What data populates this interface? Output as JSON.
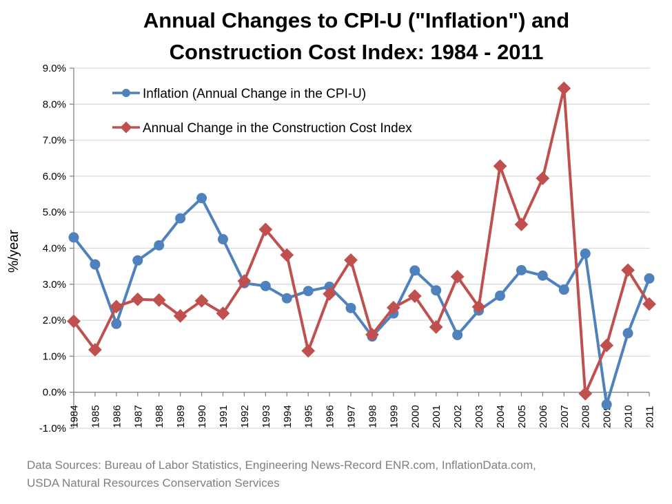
{
  "chart_data": {
    "type": "line",
    "title": "Annual Changes to CPI-U (\"Inflation\") and Construction Cost Index: 1984 - 2011",
    "title_lines": [
      "Annual Changes to CPI-U (\"Inflation\") and",
      "Construction Cost Index: 1984 - 2011"
    ],
    "xlabel": "",
    "ylabel": "%/year",
    "ylim": [
      -1.0,
      9.0
    ],
    "y_ticks": [
      -1.0,
      0.0,
      1.0,
      2.0,
      3.0,
      4.0,
      5.0,
      6.0,
      7.0,
      8.0,
      9.0
    ],
    "y_tick_labels": [
      "-1.0%",
      "0.0%",
      "1.0%",
      "2.0%",
      "3.0%",
      "4.0%",
      "5.0%",
      "6.0%",
      "7.0%",
      "8.0%",
      "9.0%"
    ],
    "grid": true,
    "legend_position": "top-left",
    "categories": [
      "1984",
      "1985",
      "1986",
      "1987",
      "1988",
      "1989",
      "1990",
      "1991",
      "1992",
      "1993",
      "1994",
      "1995",
      "1996",
      "1997",
      "1998",
      "1999",
      "2000",
      "2001",
      "2002",
      "2003",
      "2004",
      "2005",
      "2006",
      "2007",
      "2008",
      "2009",
      "2010",
      "2011"
    ],
    "series": [
      {
        "name": "Inflation (Annual Change in the CPI-U)",
        "color": "#4F81BD",
        "marker": "circle",
        "values": [
          4.3,
          3.55,
          1.9,
          3.66,
          4.08,
          4.83,
          5.39,
          4.25,
          3.03,
          2.95,
          2.61,
          2.81,
          2.93,
          2.34,
          1.55,
          2.19,
          3.38,
          2.83,
          1.59,
          2.27,
          2.68,
          3.39,
          3.24,
          2.85,
          3.85,
          -0.34,
          1.64,
          3.16
        ]
      },
      {
        "name": "Annual Change in the Construction Cost Index",
        "color": "#C0504D",
        "marker": "diamond",
        "values": [
          1.97,
          1.18,
          2.38,
          2.58,
          2.56,
          2.12,
          2.54,
          2.19,
          3.09,
          4.52,
          3.81,
          1.15,
          2.73,
          3.67,
          1.6,
          2.35,
          2.67,
          1.81,
          3.21,
          2.37,
          6.28,
          4.66,
          5.94,
          8.44,
          -0.04,
          1.3,
          3.39,
          2.45
        ]
      }
    ],
    "source_lines": [
      "Data Sources: Bureau of Labor Statistics, Engineering News-Record ENR.com, InflationData.com,",
      "USDA Natural Resources Conservation Services"
    ]
  }
}
